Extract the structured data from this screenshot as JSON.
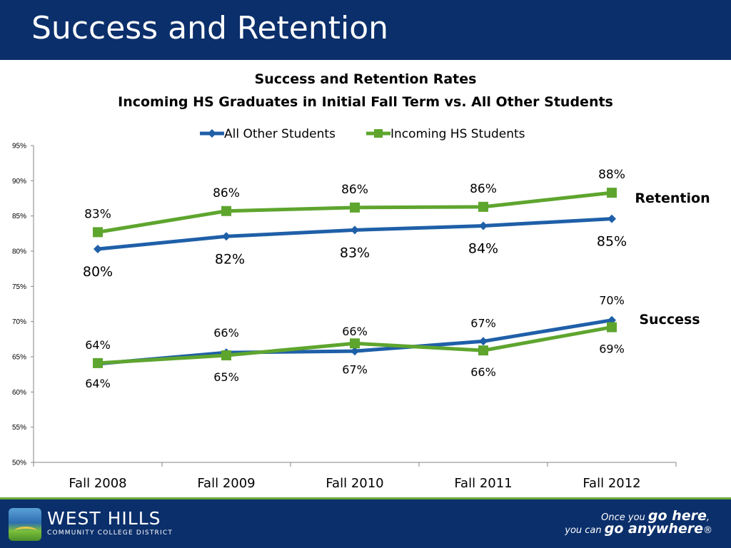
{
  "header": {
    "title": "Success and Retention"
  },
  "chart_data": {
    "type": "line",
    "title": "Success and Retention Rates",
    "subtitle": "Incoming HS Graduates in Initial Fall Term vs. All Other Students",
    "categories": [
      "Fall 2008",
      "Fall 2009",
      "Fall 2010",
      "Fall 2011",
      "Fall 2012"
    ],
    "y_ticks": [
      "50%",
      "55%",
      "60%",
      "65%",
      "70%",
      "75%",
      "80%",
      "85%",
      "90%",
      "95%"
    ],
    "ylim": [
      50,
      95
    ],
    "legend": {
      "position": "top",
      "entries": [
        "All Other Students",
        "Incoming HS Students"
      ]
    },
    "series": [
      {
        "name": "All Other Students",
        "group": "Retention",
        "color": "#1f5fa8",
        "marker": "diamond",
        "values": [
          80.3,
          82.1,
          83.0,
          83.6,
          84.6
        ],
        "labels": [
          "80%",
          "82%",
          "83%",
          "84%",
          "85%"
        ]
      },
      {
        "name": "Incoming HS Students",
        "group": "Retention",
        "color": "#5ea52e",
        "marker": "square",
        "values": [
          82.7,
          85.7,
          86.2,
          86.3,
          88.3
        ],
        "labels": [
          "83%",
          "86%",
          "86%",
          "86%",
          "88%"
        ]
      },
      {
        "name": "All Other Students",
        "group": "Success",
        "color": "#1f5fa8",
        "marker": "diamond",
        "values": [
          64.0,
          65.6,
          65.8,
          67.2,
          70.2
        ],
        "labels": [
          "64%",
          "66%",
          "66%",
          "67%",
          "70%"
        ]
      },
      {
        "name": "Incoming HS Students",
        "group": "Success",
        "color": "#5ea52e",
        "marker": "square",
        "values": [
          64.1,
          65.2,
          66.9,
          65.9,
          69.2
        ],
        "labels": [
          "64%",
          "65%",
          "67%",
          "66%",
          "69%"
        ]
      }
    ],
    "annotations": [
      "Retention",
      "Success"
    ]
  },
  "footer": {
    "logo_name": "WEST HILLS",
    "logo_sub": "COMMUNITY COLLEGE DISTRICT",
    "tagline_1a": "Once you ",
    "tagline_1b": "go here",
    "tagline_1c": ",",
    "tagline_2a": "you can ",
    "tagline_2b": "go anywhere",
    "tagline_2c": "®"
  }
}
